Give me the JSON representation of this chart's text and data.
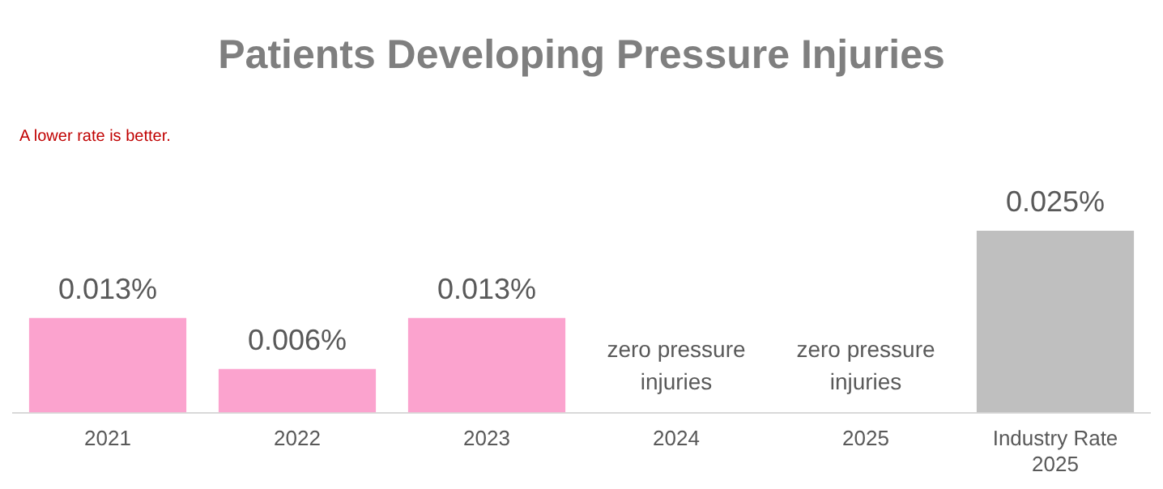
{
  "chart_data": {
    "type": "bar",
    "title": "Patients Developing Pressure Injuries",
    "annotations": [
      "A lower rate is better."
    ],
    "categories": [
      "2021",
      "2022",
      "2023",
      "2024",
      "2025",
      "Industry Rate 2025"
    ],
    "values": [
      0.013,
      0.006,
      0.013,
      0,
      0,
      0.025
    ],
    "colors": [
      "#fba3ce",
      "#fba3ce",
      "#fba3ce",
      "#fba3ce",
      "#fba3ce",
      "#bfbfbf"
    ],
    "value_labels": [
      "0.013%",
      "0.006%",
      "0.013%",
      "zero pressure injuries",
      "zero pressure injuries",
      "0.025%"
    ],
    "legend": false,
    "grid": false
  }
}
